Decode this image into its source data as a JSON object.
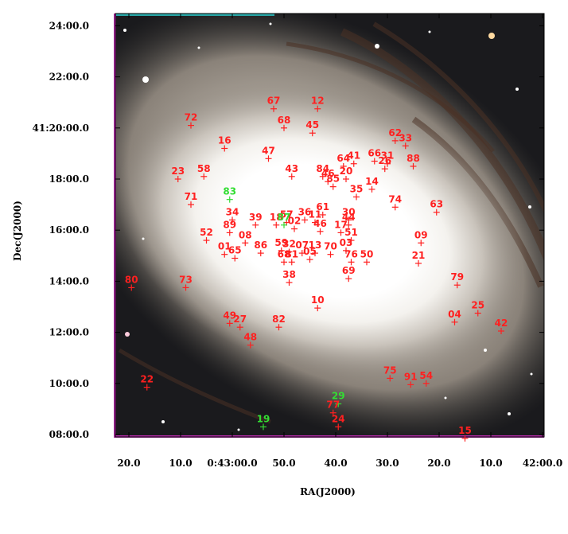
{
  "axes": {
    "xlabel": "RA(J2000)",
    "ylabel": "Dec(J2000)",
    "x_ticks": [
      {
        "label": "20.0",
        "ra_s": 20
      },
      {
        "label": "10.0",
        "ra_s": 10
      },
      {
        "label": "0:43:00.0",
        "ra_s": 0
      },
      {
        "label": "50.0",
        "ra_s": -10
      },
      {
        "label": "40.0",
        "ra_s": -20
      },
      {
        "label": "30.0",
        "ra_s": -30
      },
      {
        "label": "20.0",
        "ra_s": -40
      },
      {
        "label": "10.0",
        "ra_s": -50
      },
      {
        "label": "42:00.0",
        "ra_s": -60
      }
    ],
    "y_ticks": [
      {
        "label": "24:00.0",
        "dec_min": 24
      },
      {
        "label": "22:00.0",
        "dec_min": 22
      },
      {
        "label": "41:20:00.0",
        "dec_min": 20
      },
      {
        "label": "18:00.0",
        "dec_min": 18
      },
      {
        "label": "16:00.0",
        "dec_min": 16
      },
      {
        "label": "14:00.0",
        "dec_min": 14
      },
      {
        "label": "12:00.0",
        "dec_min": 12
      },
      {
        "label": "10:00.0",
        "dec_min": 10
      },
      {
        "label": "08:00.0",
        "dec_min": 8
      }
    ]
  },
  "colors": {
    "red_marker": "#ff2020",
    "green_marker": "#33dd33",
    "border_cyan": "#2aa6a6",
    "border_magenta": "#b02aa6"
  },
  "sources": [
    {
      "id": "67",
      "ra_s": -8.0,
      "dec_min": 20.75,
      "color": "red"
    },
    {
      "id": "12",
      "ra_s": -16.5,
      "dec_min": 20.75,
      "color": "red"
    },
    {
      "id": "68",
      "ra_s": -10.0,
      "dec_min": 20.0,
      "color": "red"
    },
    {
      "id": "45",
      "ra_s": -15.5,
      "dec_min": 19.8,
      "color": "red"
    },
    {
      "id": "72",
      "ra_s": 8.0,
      "dec_min": 20.1,
      "color": "red"
    },
    {
      "id": "16",
      "ra_s": 1.5,
      "dec_min": 19.2,
      "color": "red"
    },
    {
      "id": "47",
      "ra_s": -7.0,
      "dec_min": 18.8,
      "color": "red"
    },
    {
      "id": "62",
      "ra_s": -31.5,
      "dec_min": 19.5,
      "color": "red"
    },
    {
      "id": "33",
      "ra_s": -33.5,
      "dec_min": 19.3,
      "color": "red"
    },
    {
      "id": "66",
      "ra_s": -27.5,
      "dec_min": 18.7,
      "color": "red"
    },
    {
      "id": "31",
      "ra_s": -30.0,
      "dec_min": 18.6,
      "color": "red"
    },
    {
      "id": "26",
      "ra_s": -29.5,
      "dec_min": 18.4,
      "color": "red"
    },
    {
      "id": "88",
      "ra_s": -35.0,
      "dec_min": 18.5,
      "color": "red"
    },
    {
      "id": "64",
      "ra_s": -21.5,
      "dec_min": 18.5,
      "color": "red"
    },
    {
      "id": "41",
      "ra_s": -23.5,
      "dec_min": 18.6,
      "color": "red"
    },
    {
      "id": "23",
      "ra_s": 10.5,
      "dec_min": 18.0,
      "color": "red"
    },
    {
      "id": "58",
      "ra_s": 5.5,
      "dec_min": 18.1,
      "color": "red"
    },
    {
      "id": "43",
      "ra_s": -11.5,
      "dec_min": 18.1,
      "color": "red"
    },
    {
      "id": "84",
      "ra_s": -17.5,
      "dec_min": 18.1,
      "color": "red"
    },
    {
      "id": "46",
      "ra_s": -18.5,
      "dec_min": 17.9,
      "color": "red"
    },
    {
      "id": "20",
      "ra_s": -22.0,
      "dec_min": 18.0,
      "color": "red"
    },
    {
      "id": "85",
      "ra_s": -19.5,
      "dec_min": 17.7,
      "color": "red"
    },
    {
      "id": "14",
      "ra_s": -27.0,
      "dec_min": 17.6,
      "color": "red"
    },
    {
      "id": "35",
      "ra_s": -24.0,
      "dec_min": 17.3,
      "color": "red"
    },
    {
      "id": "71",
      "ra_s": 8.0,
      "dec_min": 17.0,
      "color": "red"
    },
    {
      "id": "83",
      "ra_s": 0.5,
      "dec_min": 17.2,
      "color": "green"
    },
    {
      "id": "74",
      "ra_s": -31.5,
      "dec_min": 16.9,
      "color": "red"
    },
    {
      "id": "63",
      "ra_s": -39.5,
      "dec_min": 16.7,
      "color": "red"
    },
    {
      "id": "34",
      "ra_s": 0.0,
      "dec_min": 16.4,
      "color": "red"
    },
    {
      "id": "39",
      "ra_s": -4.5,
      "dec_min": 16.2,
      "color": "red"
    },
    {
      "id": "18",
      "ra_s": -8.5,
      "dec_min": 16.2,
      "color": "red"
    },
    {
      "id": "57",
      "ra_s": -10.5,
      "dec_min": 16.3,
      "color": "red"
    },
    {
      "id": "87",
      "ra_s": -10.0,
      "dec_min": 16.2,
      "color": "green"
    },
    {
      "id": "02",
      "ra_s": -12.0,
      "dec_min": 16.05,
      "color": "red"
    },
    {
      "id": "36",
      "ra_s": -14.0,
      "dec_min": 16.4,
      "color": "red"
    },
    {
      "id": "11",
      "ra_s": -16.0,
      "dec_min": 16.3,
      "color": "red"
    },
    {
      "id": "61",
      "ra_s": -17.5,
      "dec_min": 16.6,
      "color": "red"
    },
    {
      "id": "46b",
      "label": "46",
      "ra_s": -17.0,
      "dec_min": 15.95,
      "color": "red"
    },
    {
      "id": "30",
      "ra_s": -22.5,
      "dec_min": 16.4,
      "color": "red"
    },
    {
      "id": "44",
      "ra_s": -22.5,
      "dec_min": 16.2,
      "color": "red"
    },
    {
      "id": "17",
      "ra_s": -21.0,
      "dec_min": 15.9,
      "color": "red"
    },
    {
      "id": "51",
      "ra_s": -23.0,
      "dec_min": 15.6,
      "color": "red"
    },
    {
      "id": "09",
      "ra_s": -36.5,
      "dec_min": 15.5,
      "color": "red"
    },
    {
      "id": "52",
      "ra_s": 5.0,
      "dec_min": 15.6,
      "color": "red"
    },
    {
      "id": "89",
      "ra_s": 0.5,
      "dec_min": 15.9,
      "color": "red"
    },
    {
      "id": "08",
      "ra_s": -2.5,
      "dec_min": 15.5,
      "color": "red"
    },
    {
      "id": "01",
      "ra_s": 1.5,
      "dec_min": 15.05,
      "color": "red"
    },
    {
      "id": "65",
      "ra_s": -0.5,
      "dec_min": 14.9,
      "color": "red"
    },
    {
      "id": "86",
      "ra_s": -5.5,
      "dec_min": 15.1,
      "color": "red"
    },
    {
      "id": "59",
      "ra_s": -9.5,
      "dec_min": 15.2,
      "color": "red"
    },
    {
      "id": "32",
      "ra_s": -11.0,
      "dec_min": 15.15,
      "color": "red"
    },
    {
      "id": "07",
      "ra_s": -13.5,
      "dec_min": 15.1,
      "color": "red"
    },
    {
      "id": "13",
      "ra_s": -16.0,
      "dec_min": 15.1,
      "color": "red"
    },
    {
      "id": "70",
      "ra_s": -19.0,
      "dec_min": 15.05,
      "color": "red"
    },
    {
      "id": "03",
      "ra_s": -22.0,
      "dec_min": 15.2,
      "color": "red"
    },
    {
      "id": "76",
      "ra_s": -23.0,
      "dec_min": 14.75,
      "color": "red"
    },
    {
      "id": "50",
      "ra_s": -26.0,
      "dec_min": 14.75,
      "color": "red"
    },
    {
      "id": "05",
      "ra_s": -15.0,
      "dec_min": 14.85,
      "color": "red"
    },
    {
      "id": "68b",
      "label": "68",
      "ra_s": -10.0,
      "dec_min": 14.75,
      "color": "red"
    },
    {
      "id": "81",
      "ra_s": -11.5,
      "dec_min": 14.75,
      "color": "red"
    },
    {
      "id": "21",
      "ra_s": -36.0,
      "dec_min": 14.7,
      "color": "red"
    },
    {
      "id": "38",
      "ra_s": -11.0,
      "dec_min": 13.95,
      "color": "red"
    },
    {
      "id": "69",
      "ra_s": -22.5,
      "dec_min": 14.1,
      "color": "red"
    },
    {
      "id": "80",
      "ra_s": 19.5,
      "dec_min": 13.75,
      "color": "red"
    },
    {
      "id": "73",
      "ra_s": 9.0,
      "dec_min": 13.75,
      "color": "red"
    },
    {
      "id": "79",
      "ra_s": -43.5,
      "dec_min": 13.85,
      "color": "red"
    },
    {
      "id": "10",
      "ra_s": -16.5,
      "dec_min": 12.95,
      "color": "red"
    },
    {
      "id": "04",
      "ra_s": -43.0,
      "dec_min": 12.4,
      "color": "red"
    },
    {
      "id": "25",
      "ra_s": -47.5,
      "dec_min": 12.75,
      "color": "red"
    },
    {
      "id": "42",
      "ra_s": -52.0,
      "dec_min": 12.05,
      "color": "red"
    },
    {
      "id": "49",
      "ra_s": 0.5,
      "dec_min": 12.35,
      "color": "red"
    },
    {
      "id": "27",
      "ra_s": -1.5,
      "dec_min": 12.2,
      "color": "red"
    },
    {
      "id": "82",
      "ra_s": -9.0,
      "dec_min": 12.2,
      "color": "red"
    },
    {
      "id": "48",
      "ra_s": -3.5,
      "dec_min": 11.5,
      "color": "red"
    },
    {
      "id": "22",
      "ra_s": 16.5,
      "dec_min": 9.85,
      "color": "red"
    },
    {
      "id": "75",
      "ra_s": -30.5,
      "dec_min": 10.2,
      "color": "red"
    },
    {
      "id": "91",
      "ra_s": -34.5,
      "dec_min": 9.95,
      "color": "red"
    },
    {
      "id": "54",
      "ra_s": -37.5,
      "dec_min": 10.0,
      "color": "red"
    },
    {
      "id": "29",
      "ra_s": -20.5,
      "dec_min": 9.2,
      "color": "green"
    },
    {
      "id": "77",
      "ra_s": -19.5,
      "dec_min": 8.85,
      "color": "red"
    },
    {
      "id": "24",
      "ra_s": -20.5,
      "dec_min": 8.3,
      "color": "red"
    },
    {
      "id": "19",
      "ra_s": -6.0,
      "dec_min": 8.3,
      "color": "green"
    },
    {
      "id": "15",
      "ra_s": -45.0,
      "dec_min": 7.85,
      "color": "red"
    }
  ]
}
